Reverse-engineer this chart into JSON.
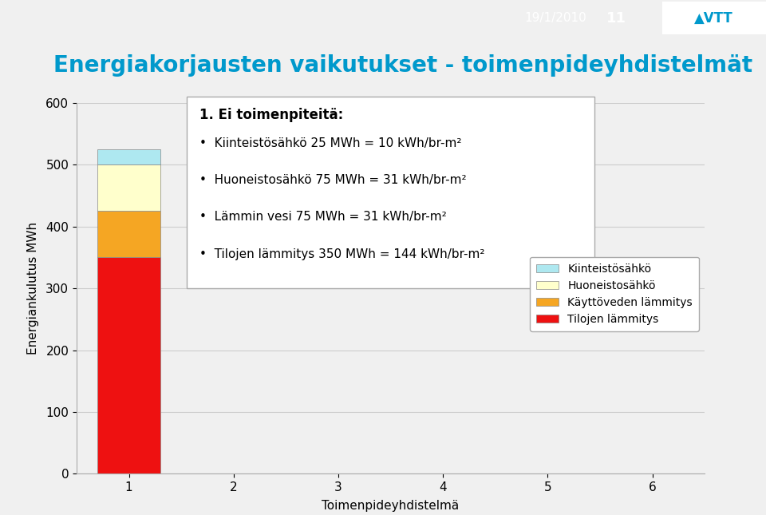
{
  "title": "Energiakorjausten vaikutukset - toimenpideyhdistelmät",
  "xlabel": "Toimenpideyhdistelmä",
  "ylabel": "Energiankulutus MWh",
  "ylim": [
    0,
    600
  ],
  "xlim": [
    0.5,
    6.5
  ],
  "xticks": [
    1,
    2,
    3,
    4,
    5,
    6
  ],
  "yticks": [
    0,
    100,
    200,
    300,
    400,
    500,
    600
  ],
  "bar_width": 0.6,
  "categories": [
    1,
    2,
    3,
    4,
    5,
    6
  ],
  "series": [
    {
      "label": "Tilojen lämmitys",
      "color": "#ee1111",
      "values": [
        350,
        0,
        0,
        0,
        0,
        0
      ]
    },
    {
      "label": "Käyttöveden lämmitys",
      "color": "#f5a623",
      "values": [
        75,
        0,
        0,
        0,
        0,
        0
      ]
    },
    {
      "label": "Huoneistosähkö",
      "color": "#ffffcc",
      "values": [
        75,
        0,
        0,
        0,
        0,
        0
      ]
    },
    {
      "label": "Kiinteistösähkö",
      "color": "#aee8f0",
      "values": [
        25,
        0,
        0,
        0,
        0,
        0
      ]
    }
  ],
  "annotation_title": "1. Ei toimenpiteitä:",
  "annotation_bullets": [
    "Kiinteistösähkö 25 MWh = 10 kWh/br-m²",
    "Huoneistosähkö 75 MWh = 31 kWh/br-m²",
    "Lämmin vesi 75 MWh = 31 kWh/br-m²",
    "Tilojen lämmitys 350 MWh = 144 kWh/br-m²"
  ],
  "header_bar_color": "#0099cc",
  "header_text": "19/1/2010",
  "header_number": "11",
  "background_color": "#f0f0f0",
  "plot_background": "#f0f0f0",
  "grid_color": "#cccccc",
  "title_color": "#0099cc",
  "title_fontsize": 20
}
